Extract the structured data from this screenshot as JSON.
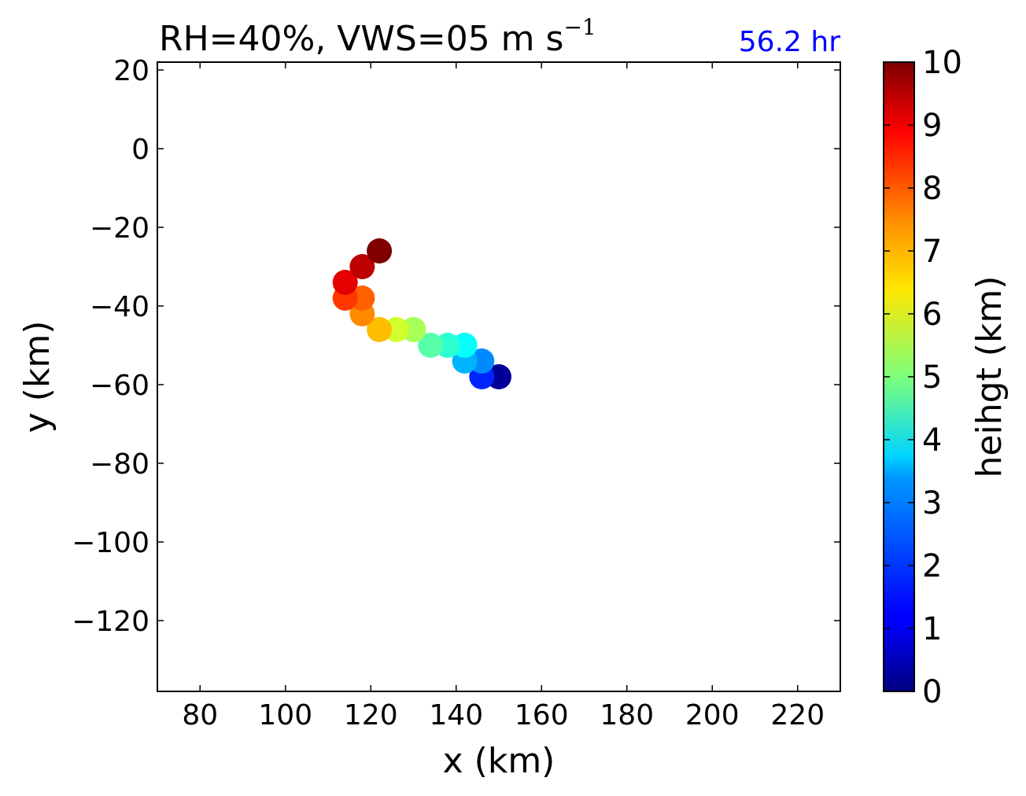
{
  "chart_data": {
    "type": "scatter",
    "title": "RH=40%, VWS=05 m s",
    "title_sup": "−1",
    "annotation": "56.2 hr",
    "annotation_color": "#0000ff",
    "xlabel": "x (km)",
    "ylabel": "y (km)",
    "xlim": [
      70,
      230
    ],
    "ylim": [
      -138,
      22
    ],
    "xticks": [
      80,
      100,
      120,
      140,
      160,
      180,
      200,
      220
    ],
    "yticks": [
      20,
      0,
      -20,
      -40,
      -60,
      -80,
      -100,
      -120
    ],
    "xtick_labels": [
      "80",
      "100",
      "120",
      "140",
      "160",
      "180",
      "200",
      "220"
    ],
    "ytick_labels": [
      "20",
      "0",
      "−20",
      "−40",
      "−60",
      "−80",
      "−100",
      "−120"
    ],
    "colorbar": {
      "label": "heihgt (km)",
      "min": 0,
      "max": 10,
      "ticks": [
        0,
        1,
        2,
        3,
        4,
        5,
        6,
        7,
        8,
        9,
        10
      ],
      "tick_labels": [
        "0",
        "1",
        "2",
        "3",
        "4",
        "5",
        "6",
        "7",
        "8",
        "9",
        "10"
      ],
      "colormap": "jet"
    },
    "points": [
      {
        "x": 150,
        "y": -58,
        "height": 0.25
      },
      {
        "x": 146,
        "y": -58,
        "height": 1.6
      },
      {
        "x": 146,
        "y": -54,
        "height": 2.6
      },
      {
        "x": 142,
        "y": -54,
        "height": 3.0
      },
      {
        "x": 142,
        "y": -50,
        "height": 3.8
      },
      {
        "x": 138,
        "y": -50,
        "height": 4.2
      },
      {
        "x": 134,
        "y": -50,
        "height": 4.6
      },
      {
        "x": 130,
        "y": -46,
        "height": 5.4
      },
      {
        "x": 126,
        "y": -46,
        "height": 5.8
      },
      {
        "x": 122,
        "y": -46,
        "height": 6.9
      },
      {
        "x": 118,
        "y": -42,
        "height": 7.4
      },
      {
        "x": 118,
        "y": -38,
        "height": 7.8
      },
      {
        "x": 114,
        "y": -38,
        "height": 8.2
      },
      {
        "x": 114,
        "y": -34,
        "height": 9.0
      },
      {
        "x": 118,
        "y": -30,
        "height": 9.4
      },
      {
        "x": 122,
        "y": -26,
        "height": 10.0
      }
    ]
  }
}
